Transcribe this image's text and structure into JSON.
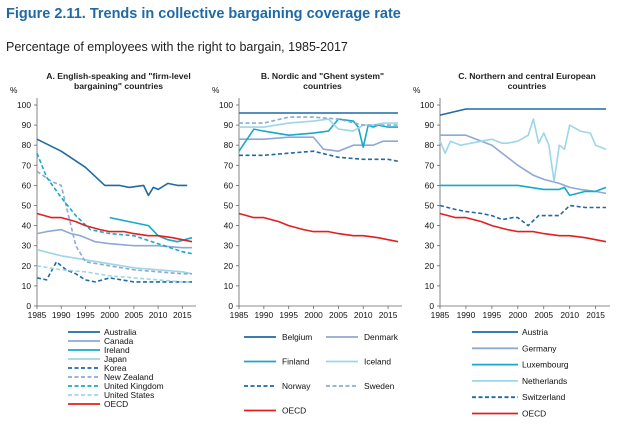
{
  "header": {
    "title": "Figure 2.11. Trends in collective bargaining coverage rate",
    "subtitle": "Percentage of employees with the right to bargain, 1985-2017"
  },
  "colors": {
    "dark_blue": "#1f6aa5",
    "medium_blue": "#8ea9d3",
    "teal": "#17a9c7",
    "light_teal": "#9dd6e6",
    "red": "#e02020",
    "axis": "#666666"
  },
  "chart_data": [
    {
      "type": "line",
      "title": "A. English-speaking and \"firm-level bargaining\" countries",
      "title_lines": [
        "A. English-speaking and \"firm-level",
        "bargaining\" countries"
      ],
      "ylabel": "%",
      "ylim": [
        0,
        100
      ],
      "yticks": [
        0,
        10,
        20,
        30,
        40,
        50,
        60,
        70,
        80,
        90,
        100
      ],
      "xlim": [
        1985,
        2017
      ],
      "xticks": [
        1985,
        1990,
        1995,
        2000,
        2005,
        2010,
        2015
      ],
      "grid": false,
      "legend": "below",
      "series": [
        {
          "name": "Australia",
          "color": "#1f6aa5",
          "style": "solid",
          "x": [
            1985,
            1990,
            1995,
            1999,
            2000,
            2002,
            2004,
            2007,
            2008,
            2009,
            2010,
            2012,
            2014,
            2016
          ],
          "y": [
            83,
            77,
            69,
            60,
            60,
            60,
            59,
            60,
            55,
            59,
            58,
            61,
            60,
            60
          ]
        },
        {
          "name": "Canada",
          "color": "#8ea9d3",
          "style": "solid",
          "x": [
            1985,
            1987,
            1990,
            1992,
            1994,
            1997,
            2000,
            2005,
            2010,
            2015,
            2017
          ],
          "y": [
            36,
            37,
            38,
            36,
            35,
            32,
            31,
            30,
            30,
            29,
            29
          ]
        },
        {
          "name": "Ireland",
          "color": "#17a9c7",
          "style": "solid",
          "x": [
            2000,
            2004,
            2008,
            2010,
            2012,
            2014,
            2017
          ],
          "y": [
            44,
            42,
            40,
            35,
            33,
            32,
            34
          ]
        },
        {
          "name": "Japan",
          "color": "#9dd6e6",
          "style": "solid",
          "x": [
            1985,
            1990,
            1995,
            2000,
            2005,
            2010,
            2015,
            2017
          ],
          "y": [
            28,
            25,
            23,
            21,
            19,
            18,
            17,
            16
          ]
        },
        {
          "name": "Korea",
          "color": "#1f6aa5",
          "style": "dash",
          "x": [
            1985,
            1987,
            1989,
            1991,
            1993,
            1995,
            1997,
            2000,
            2005,
            2010,
            2015,
            2017
          ],
          "y": [
            14,
            13,
            22,
            18,
            16,
            13,
            12,
            14,
            12,
            12,
            12,
            12
          ]
        },
        {
          "name": "New Zealand",
          "color": "#8ea9d3",
          "style": "dash",
          "x": [
            1985,
            1988,
            1990,
            1991,
            1993,
            1995,
            2000,
            2005,
            2010,
            2015,
            2017
          ],
          "y": [
            67,
            62,
            60,
            50,
            30,
            22,
            20,
            18,
            17,
            16,
            16
          ]
        },
        {
          "name": "United Kingdom",
          "color": "#17a9c7",
          "style": "dash",
          "x": [
            1985,
            1987,
            1990,
            1993,
            1996,
            2000,
            2005,
            2010,
            2015,
            2017
          ],
          "y": [
            76,
            64,
            54,
            45,
            38,
            36,
            35,
            31,
            27,
            26
          ]
        },
        {
          "name": "United States",
          "color": "#9dd6e6",
          "style": "dash",
          "x": [
            1985,
            1990,
            1995,
            2000,
            2005,
            2010,
            2015,
            2017
          ],
          "y": [
            20,
            18,
            17,
            15,
            14,
            13,
            12,
            12
          ]
        },
        {
          "name": "OECD",
          "color": "#e02020",
          "style": "solid",
          "x": [
            1985,
            1988,
            1990,
            1993,
            1995,
            1998,
            2000,
            2003,
            2005,
            2008,
            2010,
            2013,
            2015,
            2017
          ],
          "y": [
            46,
            44,
            44,
            42,
            40,
            38,
            37,
            37,
            36,
            35,
            35,
            34,
            33,
            32
          ]
        }
      ]
    },
    {
      "type": "line",
      "title": "B. Nordic and \"Ghent system\" countries",
      "title_lines": [
        "B. Nordic and \"Ghent system\"",
        "countries"
      ],
      "ylabel": "%",
      "ylim": [
        0,
        100
      ],
      "yticks": [
        0,
        10,
        20,
        30,
        40,
        50,
        60,
        70,
        80,
        90,
        100
      ],
      "xlim": [
        1985,
        2017
      ],
      "xticks": [
        1985,
        1990,
        1995,
        2000,
        2005,
        2010,
        2015
      ],
      "grid": false,
      "legend": "below",
      "series": [
        {
          "name": "Belgium",
          "color": "#1f6aa5",
          "style": "solid",
          "x": [
            1985,
            2017
          ],
          "y": [
            96,
            96
          ]
        },
        {
          "name": "Denmark",
          "color": "#8ea9d3",
          "style": "solid",
          "x": [
            1985,
            1990,
            1995,
            2000,
            2002,
            2005,
            2008,
            2010,
            2012,
            2014,
            2017
          ],
          "y": [
            83,
            83,
            84,
            84,
            78,
            77,
            80,
            80,
            80,
            82,
            82
          ]
        },
        {
          "name": "Finland",
          "color": "#17a9c7",
          "style": "solid",
          "x": [
            1985,
            1988,
            1990,
            1995,
            2000,
            2003,
            2005,
            2008,
            2009,
            2010,
            2011,
            2012,
            2013,
            2015,
            2017
          ],
          "y": [
            77,
            88,
            87,
            85,
            86,
            87,
            93,
            92,
            89,
            79,
            90,
            89,
            90,
            89,
            89
          ]
        },
        {
          "name": "Iceland",
          "color": "#9dd6e6",
          "style": "solid",
          "x": [
            1985,
            1990,
            1995,
            2000,
            2003,
            2005,
            2008,
            2010,
            2012,
            2014,
            2017
          ],
          "y": [
            89,
            89,
            91,
            92,
            93,
            88,
            87,
            90,
            90,
            91,
            91
          ]
        },
        {
          "name": "Norway",
          "color": "#1f6aa5",
          "style": "dash",
          "x": [
            1985,
            1990,
            1995,
            2000,
            2005,
            2010,
            2015,
            2017
          ],
          "y": [
            75,
            75,
            76,
            77,
            74,
            73,
            73,
            72
          ]
        },
        {
          "name": "Sweden",
          "color": "#8ea9d3",
          "style": "dash",
          "x": [
            1985,
            1990,
            1995,
            2000,
            2005,
            2010,
            2015,
            2017
          ],
          "y": [
            91,
            91,
            94,
            94,
            93,
            90,
            90,
            90
          ]
        },
        {
          "name": "OECD",
          "color": "#e02020",
          "style": "solid",
          "x": [
            1985,
            1988,
            1990,
            1993,
            1995,
            1998,
            2000,
            2003,
            2005,
            2008,
            2010,
            2013,
            2015,
            2017
          ],
          "y": [
            46,
            44,
            44,
            42,
            40,
            38,
            37,
            37,
            36,
            35,
            35,
            34,
            33,
            32
          ]
        }
      ]
    },
    {
      "type": "line",
      "title": "C. Northern and central European countries",
      "title_lines": [
        "C. Northern and central European",
        "countries"
      ],
      "ylabel": "%",
      "ylim": [
        0,
        100
      ],
      "yticks": [
        0,
        10,
        20,
        30,
        40,
        50,
        60,
        70,
        80,
        90,
        100
      ],
      "xlim": [
        1985,
        2017
      ],
      "xticks": [
        1985,
        1990,
        1995,
        2000,
        2005,
        2010,
        2015
      ],
      "grid": false,
      "legend": "below",
      "series": [
        {
          "name": "Austria",
          "color": "#1f6aa5",
          "style": "solid",
          "x": [
            1985,
            1990,
            1995,
            2000,
            2005,
            2010,
            2017
          ],
          "y": [
            95,
            98,
            98,
            98,
            98,
            98,
            98
          ]
        },
        {
          "name": "Germany",
          "color": "#8ea9d3",
          "style": "solid",
          "x": [
            1985,
            1990,
            1992,
            1995,
            1998,
            2000,
            2003,
            2005,
            2008,
            2010,
            2012,
            2015,
            2017
          ],
          "y": [
            85,
            85,
            83,
            80,
            74,
            70,
            65,
            63,
            61,
            59,
            58,
            57,
            56
          ]
        },
        {
          "name": "Luxembourg",
          "color": "#17a9c7",
          "style": "solid",
          "x": [
            1985,
            1990,
            1995,
            2000,
            2005,
            2008,
            2009,
            2010,
            2013,
            2015,
            2017
          ],
          "y": [
            60,
            60,
            60,
            60,
            58,
            58,
            59,
            55,
            57,
            57,
            59
          ]
        },
        {
          "name": "Netherlands",
          "color": "#9dd6e6",
          "style": "solid",
          "x": [
            1985,
            1986,
            1987,
            1989,
            1991,
            1993,
            1995,
            1997,
            1998,
            2000,
            2002,
            2003,
            2004,
            2005,
            2006,
            2007,
            2008,
            2009,
            2010,
            2012,
            2014,
            2015,
            2016,
            2017
          ],
          "y": [
            82,
            76,
            82,
            80,
            81,
            82,
            83,
            81,
            81,
            82,
            85,
            93,
            81,
            86,
            80,
            62,
            80,
            78,
            90,
            87,
            86,
            80,
            79,
            78
          ]
        },
        {
          "name": "Switzerland",
          "color": "#1f6aa5",
          "style": "dash",
          "x": [
            1985,
            1988,
            1990,
            1993,
            1995,
            1997,
            1999,
            2000,
            2002,
            2004,
            2005,
            2007,
            2008,
            2010,
            2013,
            2015,
            2017
          ],
          "y": [
            50,
            48,
            47,
            46,
            45,
            43,
            44,
            44,
            40,
            45,
            45,
            45,
            45,
            50,
            49,
            49,
            49
          ]
        },
        {
          "name": "OECD",
          "color": "#e02020",
          "style": "solid",
          "x": [
            1985,
            1988,
            1990,
            1993,
            1995,
            1998,
            2000,
            2003,
            2005,
            2008,
            2010,
            2013,
            2015,
            2017
          ],
          "y": [
            46,
            44,
            44,
            42,
            40,
            38,
            37,
            37,
            36,
            35,
            35,
            34,
            33,
            32
          ]
        }
      ]
    }
  ]
}
